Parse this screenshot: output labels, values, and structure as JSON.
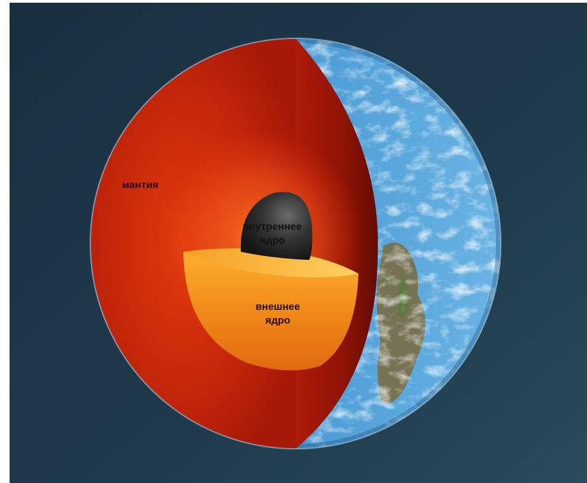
{
  "labels": {
    "mantle": "мантия",
    "inner_core_line1": "внутреннее",
    "inner_core_line2": "ядро",
    "outer_core_line1": "внешнее",
    "outer_core_line2": "ядро"
  },
  "colors": {
    "space_background": "#1d3546",
    "mantle_red": "#c4200a",
    "mantle_dark": "#7a0c04",
    "outer_core_orange": "#f08a18",
    "inner_core_black": "#2a2a2a",
    "ocean_blue": "#3b86c4",
    "land_brown": "#7a6a3c"
  }
}
